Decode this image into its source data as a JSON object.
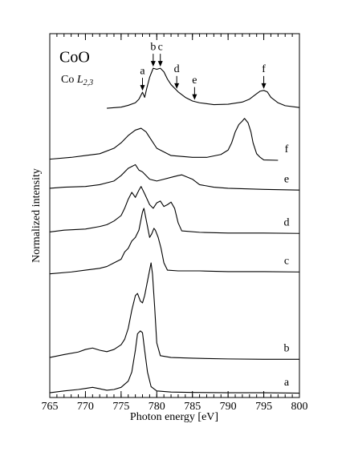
{
  "chart_data": {
    "type": "line",
    "title": "CoO",
    "label_element": "Co",
    "label_edge": "L",
    "label_subscript": "2,3",
    "xlabel": "Photon energy [eV]",
    "ylabel": "Normalized intensity",
    "xlim": [
      765,
      800
    ],
    "xticks": [
      765,
      770,
      775,
      780,
      785,
      790,
      795,
      800
    ],
    "xminor_step": 1,
    "ylim": [
      0,
      100
    ],
    "reference": {
      "color": "#000000",
      "x": [
        773,
        775,
        776,
        777,
        777.5,
        778,
        778.3,
        778.6,
        779,
        779.5,
        780,
        780.5,
        781,
        781.5,
        782,
        783,
        784,
        785,
        786,
        788,
        790,
        792,
        793,
        794,
        794.5,
        795,
        795.5,
        796,
        797,
        798,
        800
      ],
      "values": [
        79.5,
        79.8,
        80.3,
        81,
        82,
        83.9,
        82.5,
        85,
        88,
        90.5,
        90.2,
        90.5,
        89.5,
        87.5,
        86,
        84,
        82.5,
        81.5,
        81,
        80.5,
        80.6,
        81.2,
        82,
        83.5,
        84.2,
        84.4,
        84,
        82.5,
        81,
        80.2,
        79.7
      ]
    },
    "annotations": [
      {
        "text": "a",
        "x": 778
      },
      {
        "text": "b",
        "x": 779.5
      },
      {
        "text": "c",
        "x": 780.5
      },
      {
        "text": "d",
        "x": 782.8
      },
      {
        "text": "e",
        "x": 785.3
      },
      {
        "text": "f",
        "x": 795
      }
    ],
    "series": [
      {
        "name": "a",
        "color": "#000000",
        "x": [
          765,
          767,
          769,
          770,
          771,
          772,
          773,
          774,
          775,
          776,
          776.5,
          777,
          777.3,
          777.7,
          778,
          778.3,
          778.7,
          779.2,
          780,
          782,
          785,
          790,
          795,
          800
        ],
        "values": [
          1.3,
          1.8,
          2.2,
          2.5,
          2.8,
          2.4,
          2.0,
          2.2,
          2.8,
          4.5,
          7,
          13,
          17.5,
          18.3,
          17.8,
          13,
          7,
          3,
          1.8,
          1.5,
          1.4,
          1.3,
          1.3,
          1.2
        ]
      },
      {
        "name": "b",
        "color": "#000000",
        "x": [
          765,
          767,
          769,
          770,
          771,
          772,
          773,
          774,
          775,
          775.5,
          776,
          776.5,
          777,
          777.3,
          777.7,
          778,
          778.3,
          778.6,
          779,
          779.2,
          779.4,
          779.7,
          780,
          780.5,
          782,
          785,
          790,
          795,
          800
        ],
        "values": [
          11,
          11.8,
          12.5,
          13.2,
          13.6,
          13,
          12.6,
          13.2,
          14.5,
          16,
          19,
          24,
          28,
          28.6,
          26.5,
          26,
          28,
          31,
          35,
          37,
          34,
          25,
          15,
          11.5,
          11,
          10.8,
          10.6,
          10.5,
          10.5
        ]
      },
      {
        "name": "c",
        "color": "#000000",
        "x": [
          765,
          768,
          770,
          772,
          773,
          774,
          775,
          775.5,
          776,
          776.5,
          777,
          777.5,
          778,
          778.2,
          778.5,
          779,
          779.3,
          779.6,
          779.8,
          780.2,
          780.6,
          781,
          781.5,
          783,
          786,
          790,
          795,
          800
        ],
        "values": [
          34,
          34.5,
          35,
          35.5,
          36,
          37,
          38,
          40,
          41,
          43,
          44,
          46,
          51,
          52,
          49,
          44,
          45,
          46.5,
          46,
          44,
          41,
          37,
          35,
          34.8,
          34.8,
          34.6,
          34.6,
          34.5
        ]
      },
      {
        "name": "d",
        "color": "#000000",
        "x": [
          765,
          767,
          770,
          772,
          773,
          774,
          775,
          775.5,
          776,
          776.5,
          777,
          777.5,
          777.8,
          778.3,
          779,
          779.5,
          780,
          780.5,
          781,
          781.5,
          782,
          782.5,
          783,
          783.5,
          786,
          790,
          795,
          800
        ],
        "values": [
          45.5,
          46,
          46.3,
          47,
          47.5,
          48.5,
          50,
          52,
          54.5,
          56.4,
          55,
          57,
          58,
          56,
          53,
          52,
          53.5,
          54,
          52.5,
          53,
          53.7,
          52,
          48,
          45.8,
          45.4,
          45.2,
          45.2,
          45.1
        ]
      },
      {
        "name": "e",
        "color": "#000000",
        "x": [
          765,
          767,
          770,
          772,
          774,
          775,
          776,
          776.5,
          777,
          777.5,
          778,
          779,
          780,
          781,
          782,
          783,
          783.5,
          784,
          785,
          786,
          788,
          790,
          795,
          800
        ],
        "values": [
          57.5,
          57.8,
          58,
          58.5,
          59.5,
          61,
          63,
          63.5,
          64,
          62.5,
          62,
          60,
          59.5,
          60,
          60.5,
          61,
          61.2,
          60.8,
          60,
          58.5,
          57.8,
          57.5,
          57.2,
          57
        ]
      },
      {
        "name": "f",
        "color": "#000000",
        "x": [
          765,
          768,
          770,
          772,
          774,
          775,
          776,
          777,
          777.8,
          778.5,
          779,
          780,
          782,
          785,
          787,
          789,
          790,
          790.5,
          791,
          791.5,
          792,
          792.3,
          792.8,
          793.2,
          793.5,
          794,
          794.5,
          795,
          797
        ],
        "values": [
          65.5,
          66,
          66.5,
          67,
          68.5,
          70,
          72,
          73.5,
          74,
          73,
          71.5,
          68.5,
          66.5,
          66,
          66,
          66.8,
          68,
          70,
          73,
          75,
          76,
          76.7,
          75.5,
          73,
          70,
          67,
          66,
          65.3,
          65.2
        ]
      }
    ]
  }
}
